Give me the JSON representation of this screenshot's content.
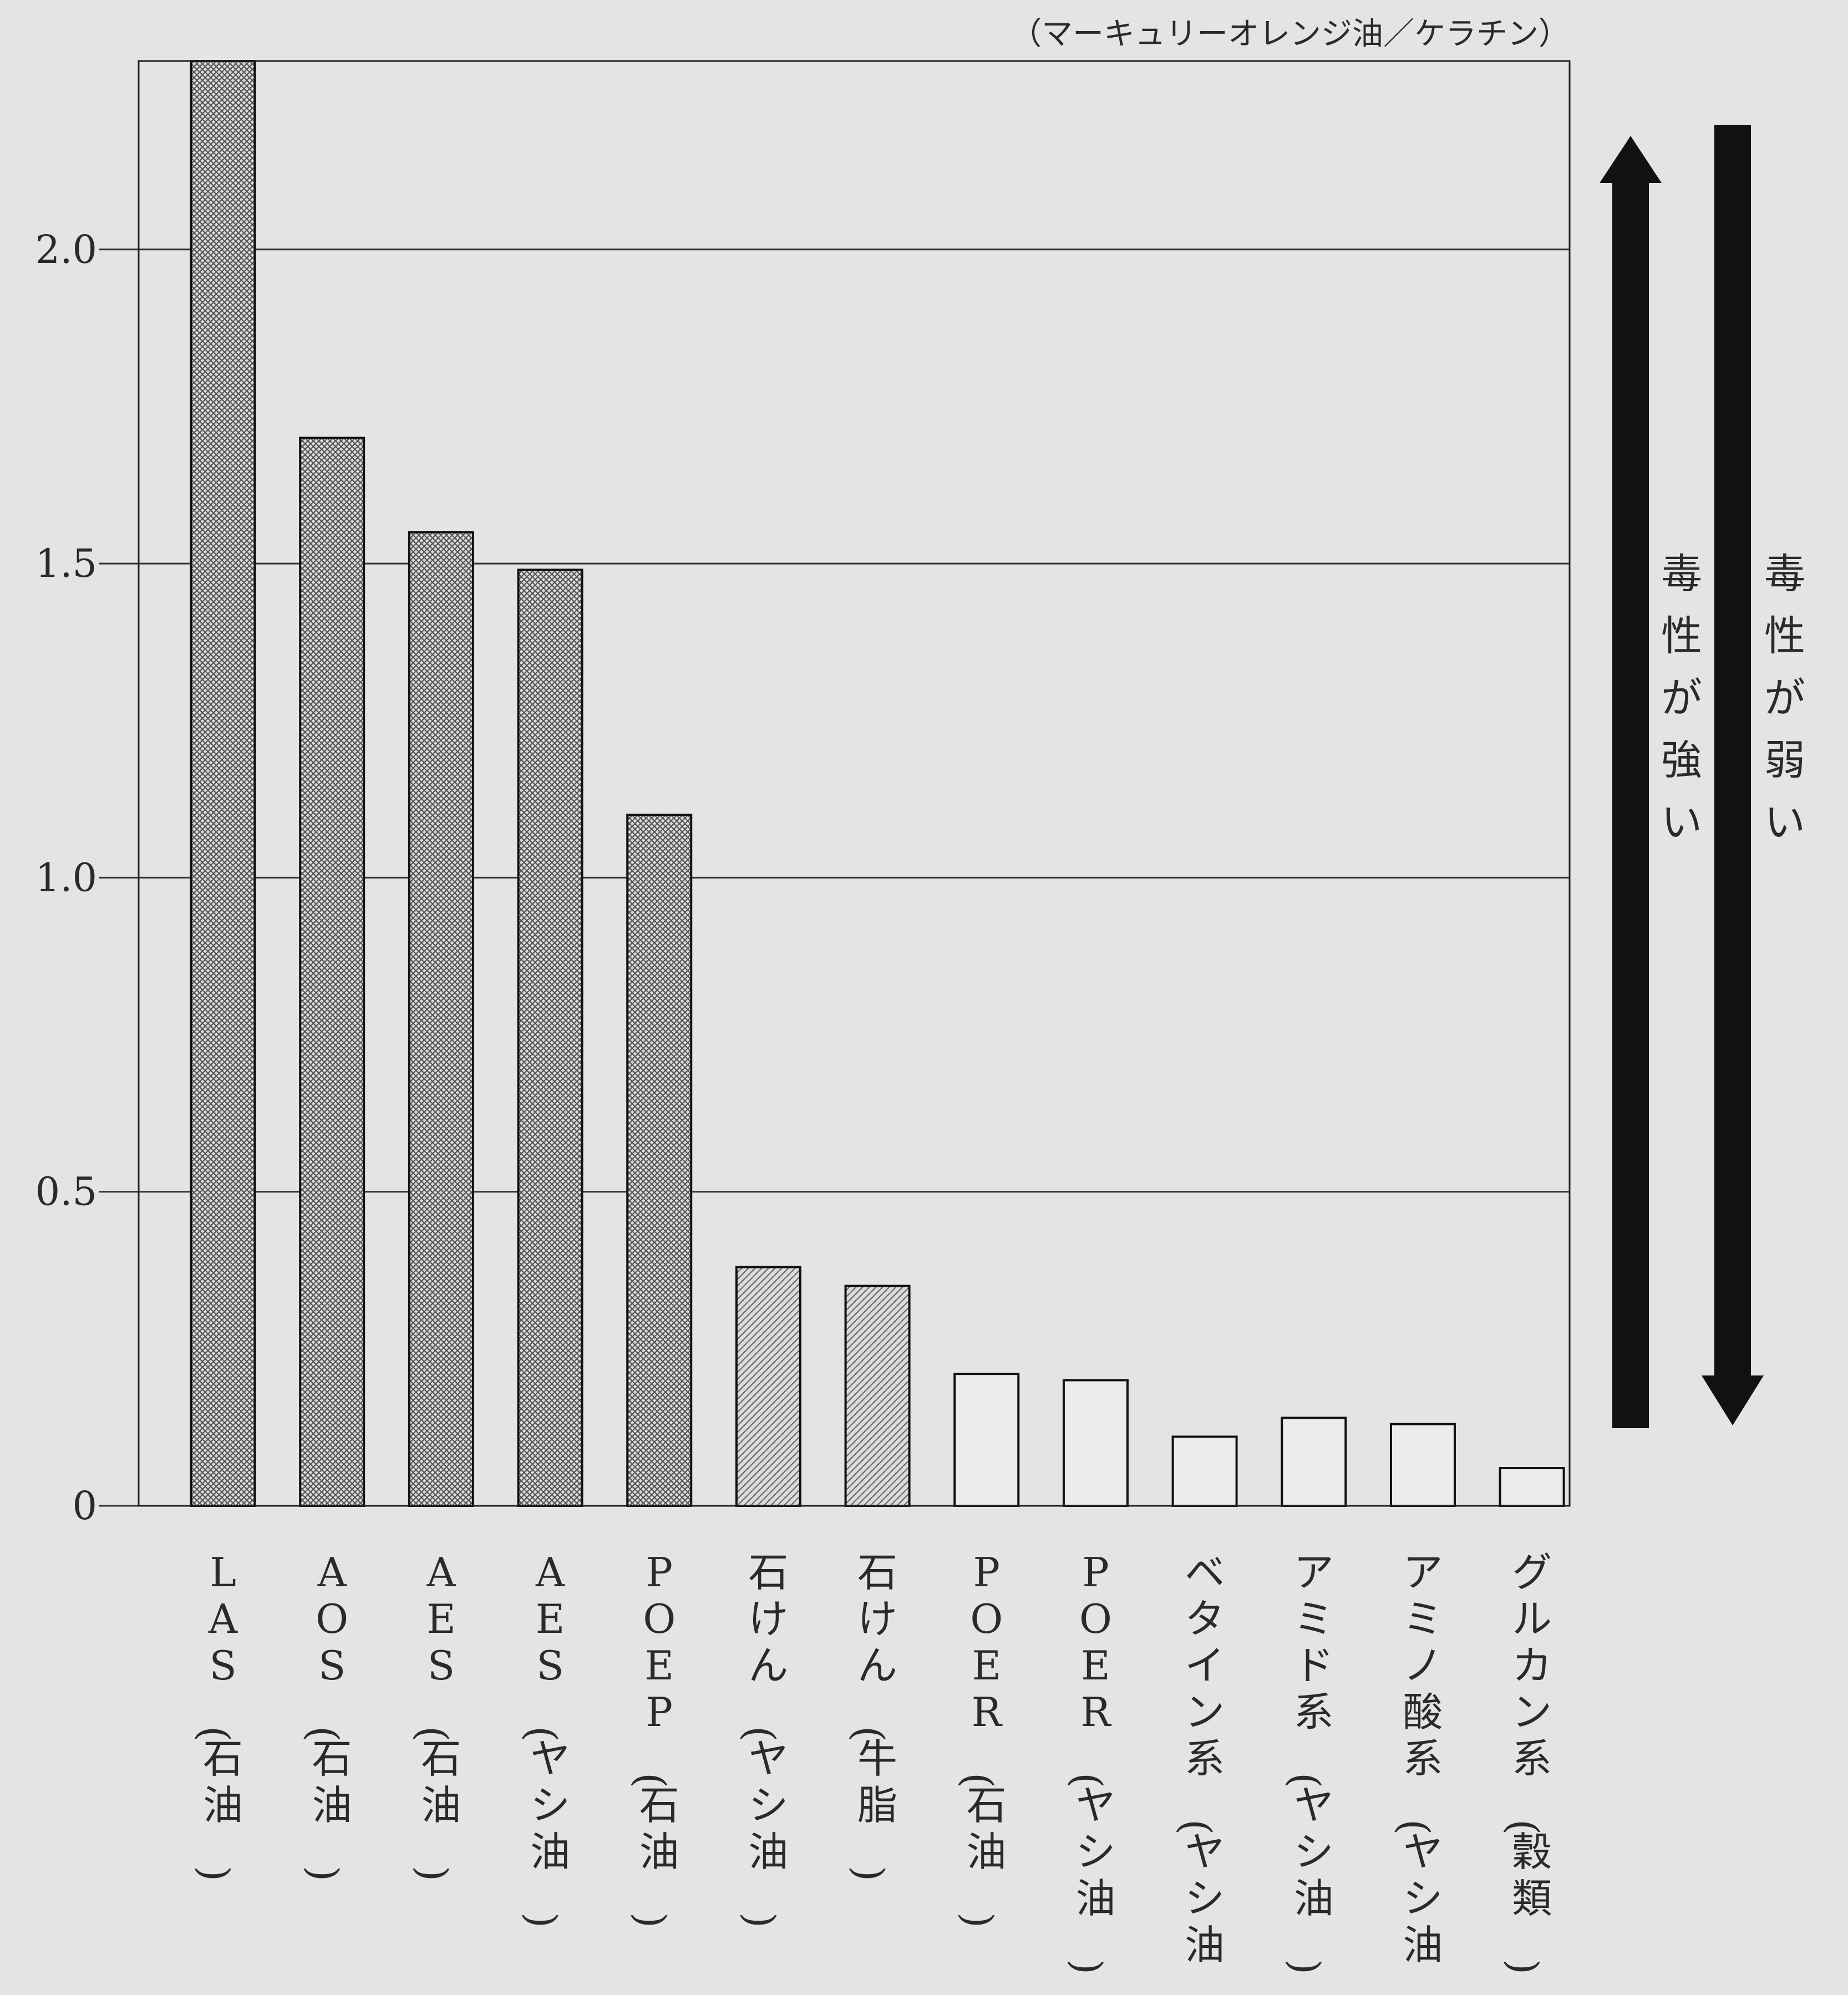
{
  "chart_data": {
    "type": "bar",
    "unit_label": "（マーキュリーオレンジ油／ケラチン）",
    "ylim": [
      0,
      2.3
    ],
    "yticks": [
      {
        "value": 0,
        "label": "0"
      },
      {
        "value": 0.5,
        "label": "0.5"
      },
      {
        "value": 1.0,
        "label": "1.0"
      },
      {
        "value": 1.5,
        "label": "1.5"
      },
      {
        "value": 2.0,
        "label": "2.0"
      }
    ],
    "grid": true,
    "categories": [
      "LAS（石油）",
      "AOS（石油）",
      "AES（石油）",
      "AES（ヤシ油）",
      "POEP（石油）",
      "石けん（ヤシ油）",
      "石けん（牛脂）",
      "POER（石油）",
      "POER（ヤシ油）",
      "ベタイン系（ヤシ油）",
      "アミド系（ヤシ油）",
      "アミノ酸系（ヤシ油）",
      "グルカン系（穀類）"
    ],
    "values": [
      2.3,
      1.7,
      1.55,
      1.49,
      1.1,
      0.38,
      0.35,
      0.21,
      0.2,
      0.11,
      0.14,
      0.13,
      0.06
    ],
    "fill_styles": [
      "crosshatch",
      "crosshatch",
      "crosshatch",
      "crosshatch",
      "crosshatch",
      "diagonal",
      "diagonal",
      "none",
      "none",
      "none",
      "none",
      "none",
      "none"
    ],
    "arrows": [
      {
        "direction": "up",
        "label": "毒性が強い"
      },
      {
        "direction": "down",
        "label": "毒性が弱い"
      }
    ],
    "colors": {
      "background": "#e4e4e4",
      "ink": "#111111",
      "grid": "#333333",
      "hatch": "#555555"
    }
  }
}
